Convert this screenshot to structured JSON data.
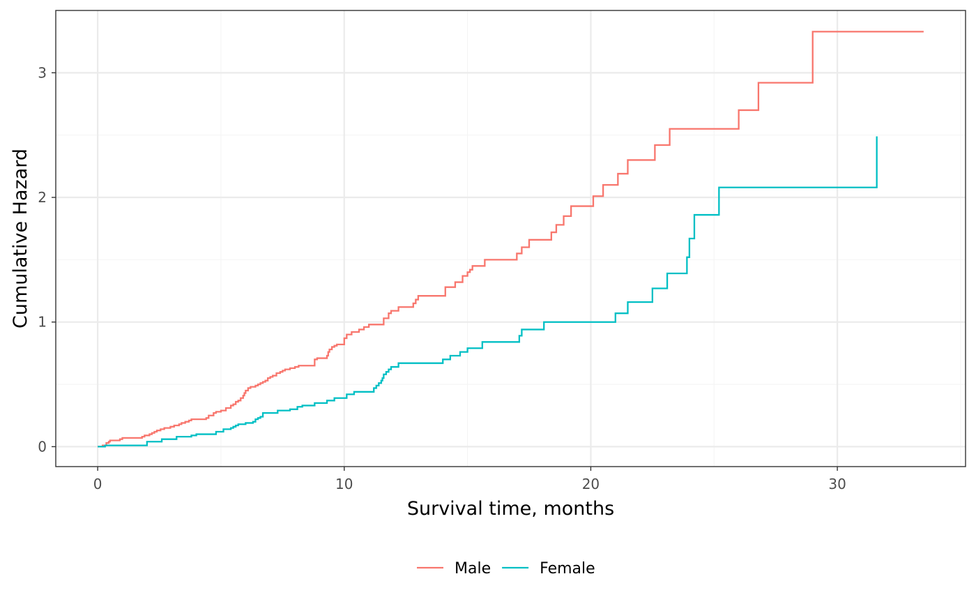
{
  "chart_data": {
    "type": "line",
    "step": true,
    "title": "",
    "xlabel": "Survival time, months",
    "ylabel": "Cumulative Hazard",
    "xlim": [
      -1.7,
      35.2
    ],
    "ylim": [
      -0.16,
      3.5
    ],
    "x_ticks": [
      0,
      10,
      20,
      30
    ],
    "y_ticks": [
      0,
      1,
      2,
      3
    ],
    "x_tick_labels": [
      "0",
      "10",
      "20",
      "30"
    ],
    "y_tick_labels": [
      "0",
      "1",
      "2",
      "3"
    ],
    "grid": true,
    "legend_position": "bottom",
    "series": [
      {
        "name": "Male",
        "color": "#F8766D",
        "x": [
          0,
          0.2,
          0.35,
          0.45,
          0.5,
          0.9,
          1.0,
          1.8,
          1.9,
          2.1,
          2.2,
          2.3,
          2.4,
          2.55,
          2.7,
          2.95,
          3.1,
          3.3,
          3.4,
          3.55,
          3.7,
          3.8,
          4.4,
          4.5,
          4.7,
          4.8,
          5.0,
          5.2,
          5.4,
          5.5,
          5.6,
          5.7,
          5.8,
          5.9,
          5.95,
          6.0,
          6.1,
          6.2,
          6.4,
          6.5,
          6.6,
          6.7,
          6.8,
          6.9,
          7.0,
          7.1,
          7.25,
          7.4,
          7.5,
          7.6,
          7.8,
          8.0,
          8.15,
          8.8,
          8.9,
          9.3,
          9.35,
          9.4,
          9.5,
          9.6,
          9.7,
          10.0,
          10.1,
          10.3,
          10.6,
          10.8,
          11.0,
          11.6,
          11.8,
          11.9,
          12.2,
          12.8,
          12.9,
          13.0,
          14.1,
          14.5,
          14.8,
          15.0,
          15.1,
          15.2,
          15.7,
          17.0,
          17.2,
          17.5,
          18.4,
          18.6,
          18.9,
          19.2,
          20.1,
          20.5,
          21.1,
          21.5,
          22.6,
          23.2,
          26.0,
          26.8,
          29.0,
          33.5
        ],
        "y": [
          0.0,
          0.01,
          0.03,
          0.04,
          0.05,
          0.06,
          0.07,
          0.08,
          0.09,
          0.1,
          0.11,
          0.12,
          0.13,
          0.14,
          0.15,
          0.16,
          0.17,
          0.18,
          0.19,
          0.2,
          0.21,
          0.22,
          0.23,
          0.25,
          0.27,
          0.28,
          0.29,
          0.31,
          0.33,
          0.34,
          0.36,
          0.37,
          0.39,
          0.41,
          0.43,
          0.45,
          0.47,
          0.48,
          0.49,
          0.5,
          0.51,
          0.52,
          0.53,
          0.55,
          0.56,
          0.57,
          0.59,
          0.6,
          0.61,
          0.62,
          0.63,
          0.64,
          0.65,
          0.7,
          0.71,
          0.73,
          0.76,
          0.78,
          0.8,
          0.81,
          0.82,
          0.87,
          0.9,
          0.92,
          0.94,
          0.96,
          0.98,
          1.03,
          1.07,
          1.09,
          1.12,
          1.15,
          1.18,
          1.21,
          1.28,
          1.32,
          1.37,
          1.4,
          1.42,
          1.45,
          1.5,
          1.55,
          1.6,
          1.66,
          1.72,
          1.78,
          1.85,
          1.93,
          2.01,
          2.1,
          2.19,
          2.3,
          2.42,
          2.55,
          2.7,
          2.92,
          3.33,
          3.33
        ]
      },
      {
        "name": "Female",
        "color": "#00BFC4",
        "x": [
          0,
          0.3,
          2.0,
          2.6,
          3.2,
          3.8,
          4.0,
          4.8,
          5.1,
          5.4,
          5.5,
          5.6,
          5.7,
          6.0,
          6.3,
          6.4,
          6.5,
          6.6,
          6.7,
          7.3,
          7.8,
          8.1,
          8.3,
          8.8,
          9.3,
          9.6,
          10.1,
          10.4,
          11.2,
          11.3,
          11.4,
          11.5,
          11.55,
          11.6,
          11.7,
          11.8,
          11.9,
          12.2,
          14.0,
          14.3,
          14.7,
          15.0,
          15.6,
          17.1,
          17.2,
          18.1,
          21.0,
          21.5,
          22.5,
          23.1,
          23.9,
          24.0,
          24.2,
          25.2,
          31.6
        ],
        "y": [
          0.0,
          0.01,
          0.04,
          0.06,
          0.08,
          0.09,
          0.1,
          0.12,
          0.14,
          0.15,
          0.16,
          0.17,
          0.18,
          0.19,
          0.2,
          0.22,
          0.23,
          0.24,
          0.27,
          0.29,
          0.3,
          0.32,
          0.33,
          0.35,
          0.37,
          0.39,
          0.42,
          0.44,
          0.47,
          0.49,
          0.51,
          0.53,
          0.55,
          0.58,
          0.6,
          0.62,
          0.64,
          0.67,
          0.7,
          0.73,
          0.76,
          0.79,
          0.84,
          0.89,
          0.94,
          1.0,
          1.07,
          1.16,
          1.27,
          1.39,
          1.52,
          1.67,
          1.86,
          2.08,
          2.49
        ]
      }
    ]
  }
}
